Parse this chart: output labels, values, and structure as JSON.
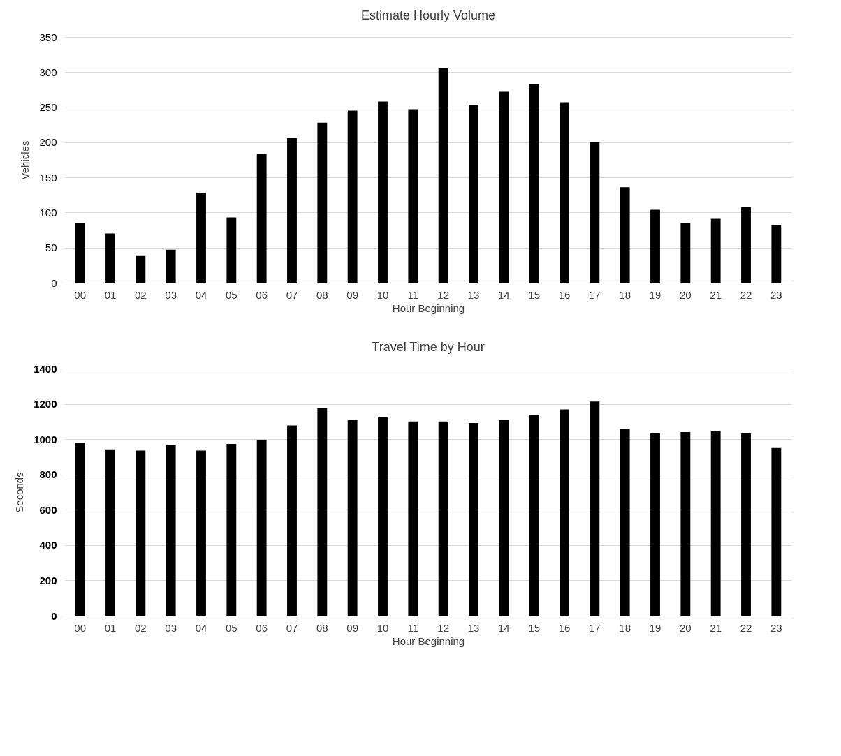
{
  "chart_data": [
    {
      "type": "bar",
      "title": "Estimate Hourly Volume",
      "xlabel": "Hour Beginning",
      "ylabel": "Vehicles",
      "categories": [
        "00",
        "01",
        "02",
        "03",
        "04",
        "05",
        "06",
        "07",
        "08",
        "09",
        "10",
        "11",
        "12",
        "13",
        "14",
        "15",
        "16",
        "17",
        "18",
        "19",
        "20",
        "21",
        "22",
        "23"
      ],
      "values": [
        85,
        70,
        38,
        47,
        128,
        93,
        183,
        206,
        228,
        245,
        258,
        247,
        306,
        253,
        272,
        283,
        257,
        200,
        136,
        104,
        85,
        91,
        108,
        82
      ],
      "color": "#000000",
      "ylim": [
        0,
        350
      ],
      "yticks": [
        0,
        50,
        100,
        150,
        200,
        250,
        300,
        350
      ],
      "grid": "y"
    },
    {
      "type": "bar",
      "title": "Travel Time by Hour",
      "xlabel": "Hour Beginning",
      "ylabel": "Seconds",
      "categories": [
        "00",
        "01",
        "02",
        "03",
        "04",
        "05",
        "06",
        "07",
        "08",
        "09",
        "10",
        "11",
        "12",
        "13",
        "14",
        "15",
        "16",
        "17",
        "18",
        "19",
        "20",
        "21",
        "22",
        "23"
      ],
      "values": [
        980,
        942,
        935,
        965,
        935,
        973,
        995,
        1078,
        1177,
        1108,
        1123,
        1100,
        1100,
        1092,
        1109,
        1138,
        1169,
        1213,
        1056,
        1033,
        1040,
        1048,
        1033,
        950
      ],
      "color": "#000000",
      "ylim": [
        0,
        1400
      ],
      "yticks": [
        0,
        200,
        400,
        600,
        800,
        1000,
        1200,
        1400
      ],
      "grid": "y"
    }
  ]
}
